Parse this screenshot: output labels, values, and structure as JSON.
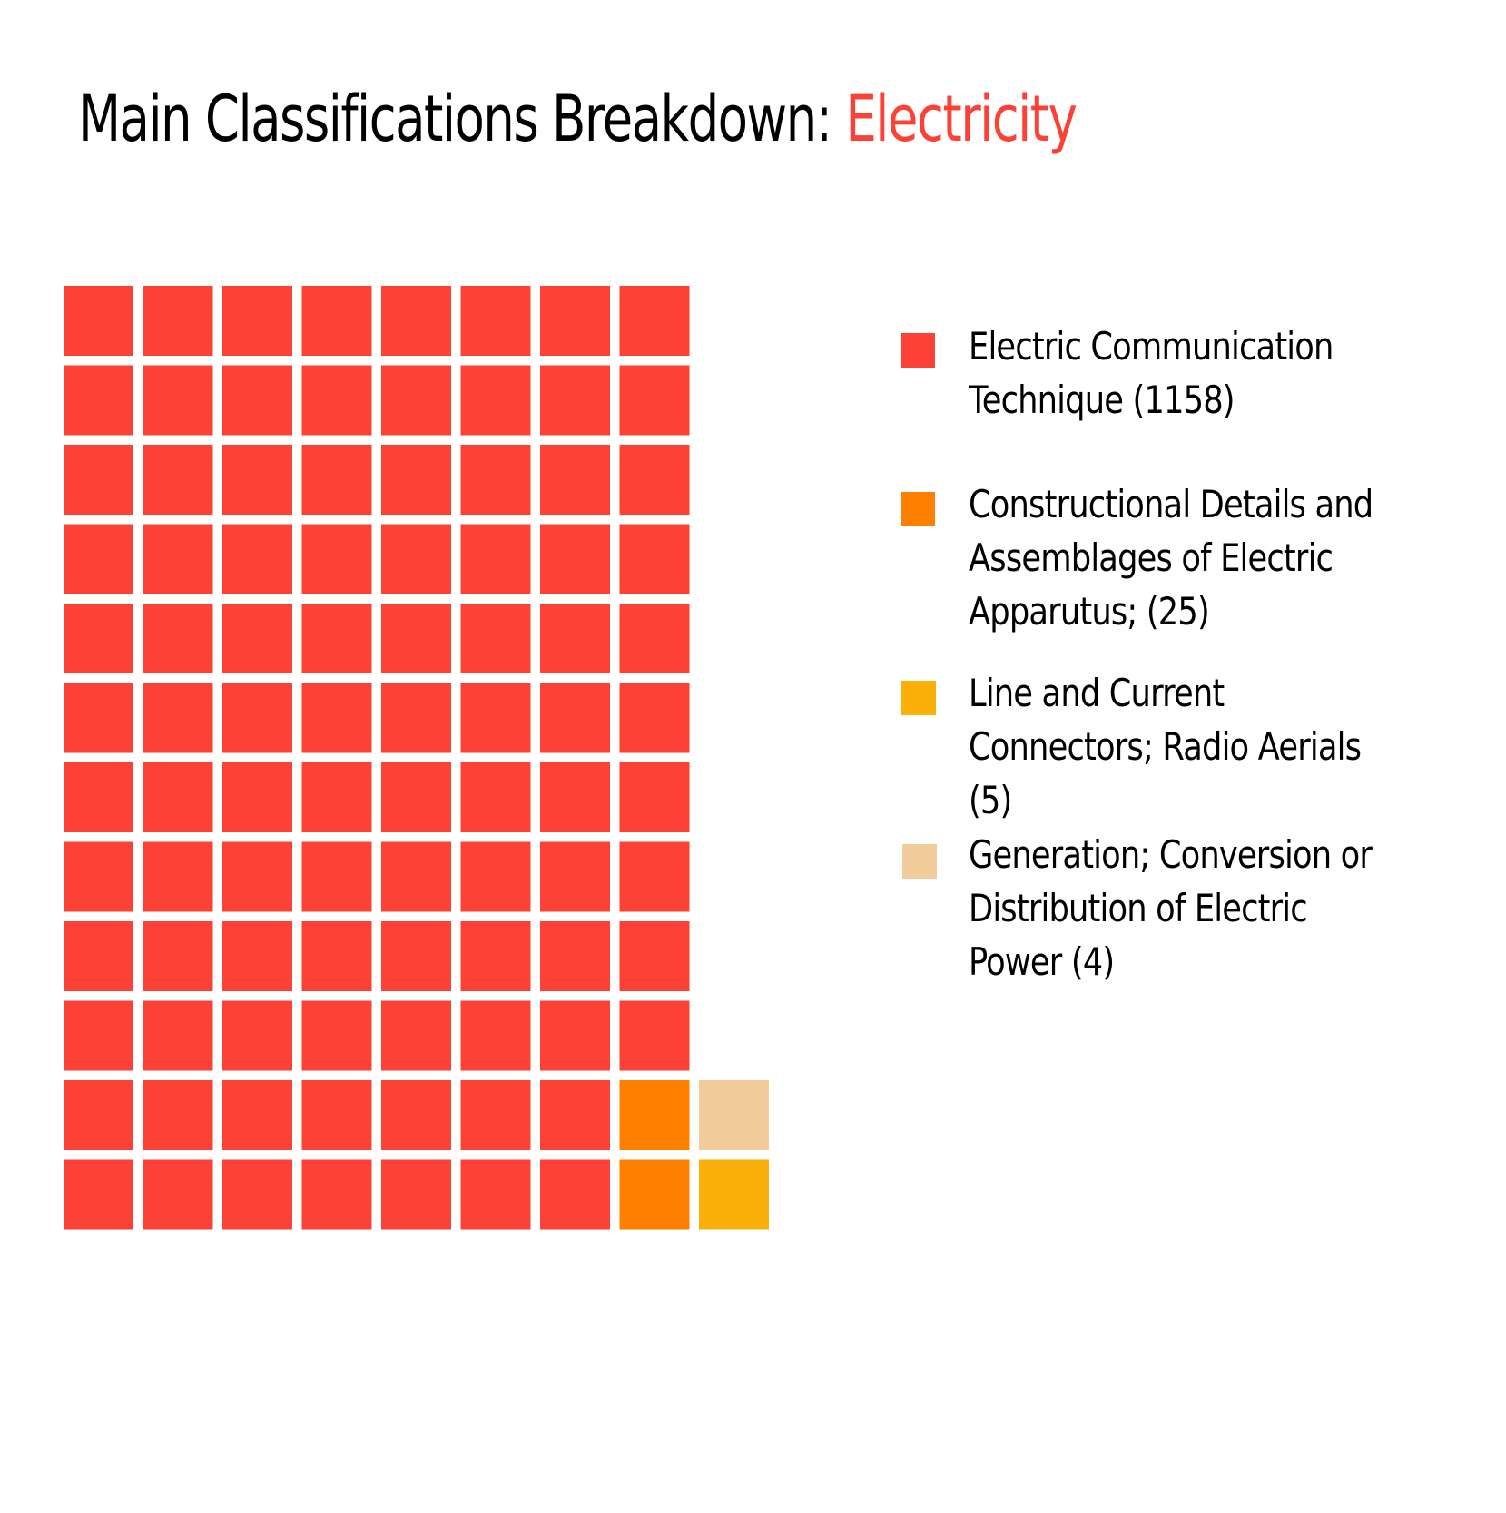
{
  "chart_data": {
    "type": "waffle",
    "title": "Main Classifications Breakdown: ",
    "title_highlight": "Electricity",
    "title_highlight_color": "#fc4136",
    "total_cells": 100,
    "series": [
      {
        "name": "Electric Communication Technique (1158)",
        "value": 1158,
        "cells": 94,
        "color": "#fc4136"
      },
      {
        "name": "Constructional Details and Assemblages of Electric Apparutus; (25)",
        "value": 25,
        "cells": 2,
        "color": "#ff8000"
      },
      {
        "name": "Line and Current Connectors; Radio Aerials (5)",
        "value": 5,
        "cells": 1,
        "color": "#f9b008"
      },
      {
        "name": "Generation; Conversion or Distribution of Electric Power (4)",
        "value": 4,
        "cells": 1,
        "color": "#f3cc9c"
      }
    ],
    "legend_position": "right"
  }
}
